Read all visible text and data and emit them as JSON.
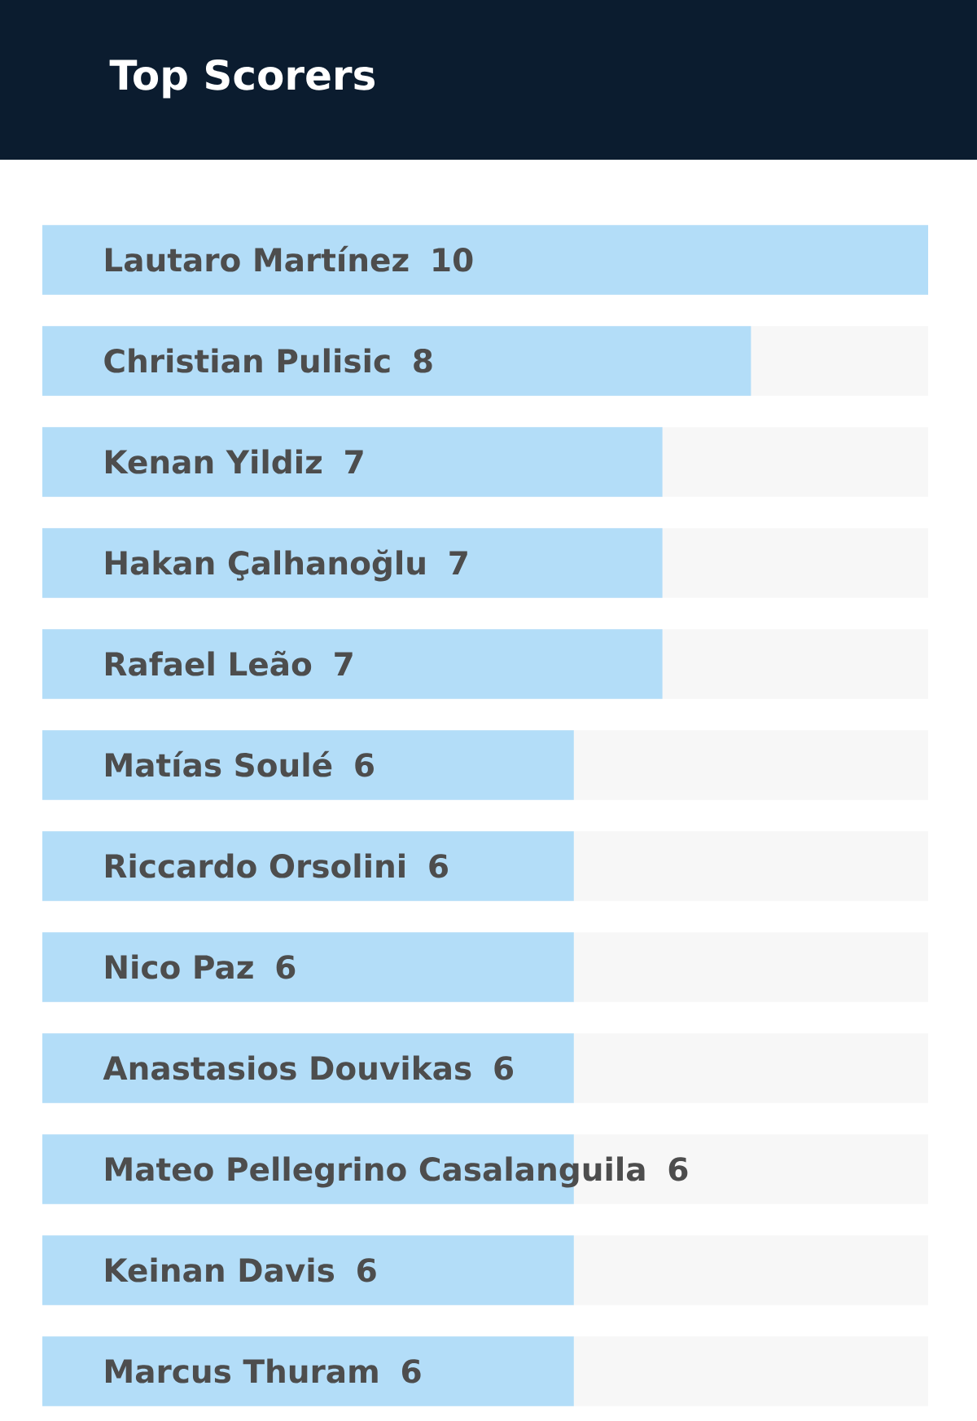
{
  "chart_data": {
    "type": "bar",
    "orientation": "horizontal",
    "title": "Top Scorers",
    "categories": [
      "Lautaro Martínez",
      "Christian Pulisic",
      "Kenan Yildiz",
      "Hakan Çalhanoğlu",
      "Rafael Leão",
      "Matías Soulé",
      "Riccardo Orsolini",
      "Nico Paz",
      "Anastasios Douvikas",
      "Mateo Pellegrino Casalanguila",
      "Keinan Davis",
      "Marcus Thuram"
    ],
    "values": [
      10,
      8,
      7,
      7,
      7,
      6,
      6,
      6,
      6,
      6,
      6,
      6
    ],
    "color": "#b3ddf8",
    "xlim": [
      0,
      10
    ],
    "data_labels": true,
    "tick_labels": "y"
  }
}
